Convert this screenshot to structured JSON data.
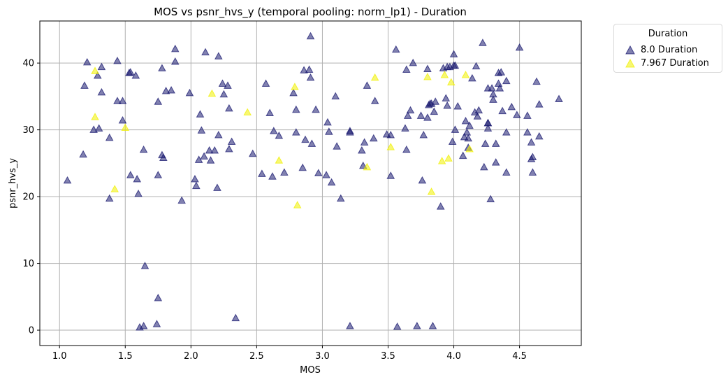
{
  "chart_data": {
    "type": "scatter",
    "title": "MOS vs psnr_hvs_y (temporal pooling: norm_lp1) - Duration",
    "xlabel": "MOS",
    "ylabel": "psnr_hvs_y",
    "xlim": [
      0.85,
      4.97
    ],
    "ylim": [
      -2.3,
      46.3
    ],
    "xticks": [
      1.0,
      1.5,
      2.0,
      2.5,
      3.0,
      3.5,
      4.0,
      4.5
    ],
    "xtick_labels": [
      "1.0",
      "1.5",
      "2.0",
      "2.5",
      "3.0",
      "3.5",
      "4.0",
      "4.5"
    ],
    "yticks": [
      0,
      10,
      20,
      30,
      40
    ],
    "ytick_labels": [
      "0",
      "10",
      "20",
      "30",
      "40"
    ],
    "grid": true,
    "legend": {
      "title": "Duration",
      "placement": "outside-top-right"
    },
    "series": [
      {
        "name": "8.0 Duration",
        "color": "#191970",
        "marker": "triangle",
        "points": [
          [
            1.06,
            22.4
          ],
          [
            1.18,
            26.3
          ],
          [
            1.19,
            36.6
          ],
          [
            1.21,
            40.1
          ],
          [
            1.26,
            30.0
          ],
          [
            1.29,
            38.1
          ],
          [
            1.3,
            30.2
          ],
          [
            1.32,
            35.6
          ],
          [
            1.32,
            39.4
          ],
          [
            1.38,
            19.7
          ],
          [
            1.38,
            28.8
          ],
          [
            1.44,
            40.3
          ],
          [
            1.44,
            34.3
          ],
          [
            1.48,
            31.4
          ],
          [
            1.48,
            34.3
          ],
          [
            1.53,
            38.5
          ],
          [
            1.54,
            38.6
          ],
          [
            1.54,
            23.2
          ],
          [
            1.58,
            38.1
          ],
          [
            1.59,
            22.6
          ],
          [
            1.6,
            20.4
          ],
          [
            1.61,
            0.4
          ],
          [
            1.64,
            0.6
          ],
          [
            1.64,
            27.0
          ],
          [
            1.65,
            9.6
          ],
          [
            1.74,
            0.9
          ],
          [
            1.75,
            4.8
          ],
          [
            1.75,
            34.2
          ],
          [
            1.75,
            23.2
          ],
          [
            1.78,
            26.2
          ],
          [
            1.78,
            39.2
          ],
          [
            1.79,
            25.8
          ],
          [
            1.81,
            35.8
          ],
          [
            1.85,
            35.9
          ],
          [
            1.88,
            42.1
          ],
          [
            1.88,
            40.2
          ],
          [
            1.93,
            19.4
          ],
          [
            1.99,
            35.5
          ],
          [
            2.03,
            22.6
          ],
          [
            2.04,
            21.6
          ],
          [
            2.06,
            25.5
          ],
          [
            2.07,
            32.3
          ],
          [
            2.08,
            29.9
          ],
          [
            2.1,
            26.0
          ],
          [
            2.11,
            41.6
          ],
          [
            2.14,
            26.9
          ],
          [
            2.15,
            25.4
          ],
          [
            2.18,
            26.9
          ],
          [
            2.2,
            21.3
          ],
          [
            2.21,
            29.2
          ],
          [
            2.21,
            41.0
          ],
          [
            2.24,
            36.9
          ],
          [
            2.25,
            35.3
          ],
          [
            2.28,
            36.6
          ],
          [
            2.29,
            27.1
          ],
          [
            2.29,
            33.2
          ],
          [
            2.31,
            28.2
          ],
          [
            2.34,
            1.8
          ],
          [
            2.47,
            26.4
          ],
          [
            2.54,
            23.4
          ],
          [
            2.57,
            36.9
          ],
          [
            2.6,
            32.5
          ],
          [
            2.62,
            23.0
          ],
          [
            2.63,
            29.8
          ],
          [
            2.67,
            29.1
          ],
          [
            2.71,
            23.6
          ],
          [
            2.78,
            35.5
          ],
          [
            2.8,
            33.0
          ],
          [
            2.8,
            29.6
          ],
          [
            2.85,
            24.3
          ],
          [
            2.86,
            38.9
          ],
          [
            2.87,
            28.5
          ],
          [
            2.9,
            39.0
          ],
          [
            2.91,
            44.0
          ],
          [
            2.91,
            37.8
          ],
          [
            2.92,
            27.9
          ],
          [
            2.95,
            33.0
          ],
          [
            2.97,
            23.5
          ],
          [
            3.03,
            23.2
          ],
          [
            3.04,
            31.1
          ],
          [
            3.05,
            29.7
          ],
          [
            3.07,
            22.1
          ],
          [
            3.1,
            35.0
          ],
          [
            3.11,
            27.5
          ],
          [
            3.14,
            19.7
          ],
          [
            3.21,
            29.6
          ],
          [
            3.21,
            29.8
          ],
          [
            3.21,
            0.6
          ],
          [
            3.3,
            26.9
          ],
          [
            3.31,
            24.6
          ],
          [
            3.32,
            28.1
          ],
          [
            3.34,
            36.6
          ],
          [
            3.39,
            28.7
          ],
          [
            3.4,
            34.3
          ],
          [
            3.49,
            29.3
          ],
          [
            3.52,
            29.2
          ],
          [
            3.52,
            23.1
          ],
          [
            3.56,
            42.0
          ],
          [
            3.57,
            0.5
          ],
          [
            3.63,
            30.2
          ],
          [
            3.64,
            39.0
          ],
          [
            3.64,
            27.0
          ],
          [
            3.65,
            32.1
          ],
          [
            3.67,
            32.9
          ],
          [
            3.69,
            40.0
          ],
          [
            3.72,
            0.6
          ],
          [
            3.75,
            32.1
          ],
          [
            3.76,
            22.4
          ],
          [
            3.77,
            29.2
          ],
          [
            3.8,
            39.1
          ],
          [
            3.8,
            31.8
          ],
          [
            3.81,
            33.7
          ],
          [
            3.82,
            33.9
          ],
          [
            3.83,
            33.9
          ],
          [
            3.84,
            0.6
          ],
          [
            3.85,
            32.7
          ],
          [
            3.86,
            34.2
          ],
          [
            3.9,
            18.5
          ],
          [
            3.92,
            39.2
          ],
          [
            3.94,
            34.7
          ],
          [
            3.95,
            33.6
          ],
          [
            3.95,
            39.4
          ],
          [
            3.97,
            39.4
          ],
          [
            3.99,
            28.2
          ],
          [
            4.0,
            41.3
          ],
          [
            4.0,
            39.6
          ],
          [
            4.01,
            30.0
          ],
          [
            4.01,
            39.6
          ],
          [
            4.03,
            33.5
          ],
          [
            4.07,
            26.1
          ],
          [
            4.08,
            28.9
          ],
          [
            4.09,
            31.3
          ],
          [
            4.1,
            29.6
          ],
          [
            4.11,
            28.7
          ],
          [
            4.11,
            27.3
          ],
          [
            4.12,
            30.6
          ],
          [
            4.14,
            37.7
          ],
          [
            4.16,
            32.6
          ],
          [
            4.17,
            39.5
          ],
          [
            4.18,
            32.0
          ],
          [
            4.19,
            32.9
          ],
          [
            4.22,
            43.0
          ],
          [
            4.23,
            24.4
          ],
          [
            4.24,
            27.9
          ],
          [
            4.26,
            31.0
          ],
          [
            4.26,
            31.0
          ],
          [
            4.26,
            36.2
          ],
          [
            4.26,
            30.2
          ],
          [
            4.28,
            19.6
          ],
          [
            4.29,
            36.2
          ],
          [
            4.3,
            35.3
          ],
          [
            4.3,
            34.5
          ],
          [
            4.32,
            27.9
          ],
          [
            4.32,
            25.1
          ],
          [
            4.34,
            38.5
          ],
          [
            4.34,
            36.9
          ],
          [
            4.35,
            36.2
          ],
          [
            4.36,
            38.6
          ],
          [
            4.37,
            32.8
          ],
          [
            4.4,
            37.3
          ],
          [
            4.4,
            29.6
          ],
          [
            4.4,
            23.6
          ],
          [
            4.44,
            33.4
          ],
          [
            4.48,
            32.2
          ],
          [
            4.5,
            42.3
          ],
          [
            4.56,
            29.6
          ],
          [
            4.56,
            32.1
          ],
          [
            4.59,
            28.1
          ],
          [
            4.59,
            25.6
          ],
          [
            4.6,
            25.9
          ],
          [
            4.6,
            23.6
          ],
          [
            4.63,
            37.2
          ],
          [
            4.65,
            29.0
          ],
          [
            4.65,
            33.8
          ],
          [
            4.8,
            34.6
          ]
        ]
      },
      {
        "name": "7.967 Duration",
        "color": "#f0f000",
        "marker": "triangle",
        "points": [
          [
            1.27,
            38.8
          ],
          [
            1.27,
            31.9
          ],
          [
            1.42,
            21.1
          ],
          [
            1.5,
            30.3
          ],
          [
            2.16,
            35.4
          ],
          [
            2.43,
            32.6
          ],
          [
            2.67,
            25.4
          ],
          [
            2.79,
            36.4
          ],
          [
            2.81,
            18.7
          ],
          [
            3.34,
            24.4
          ],
          [
            3.4,
            37.8
          ],
          [
            3.52,
            27.4
          ],
          [
            3.8,
            37.9
          ],
          [
            3.83,
            20.7
          ],
          [
            3.91,
            25.3
          ],
          [
            3.93,
            38.2
          ],
          [
            3.96,
            25.7
          ],
          [
            3.98,
            37.1
          ],
          [
            4.09,
            38.2
          ],
          [
            4.12,
            27.1
          ]
        ]
      }
    ]
  }
}
